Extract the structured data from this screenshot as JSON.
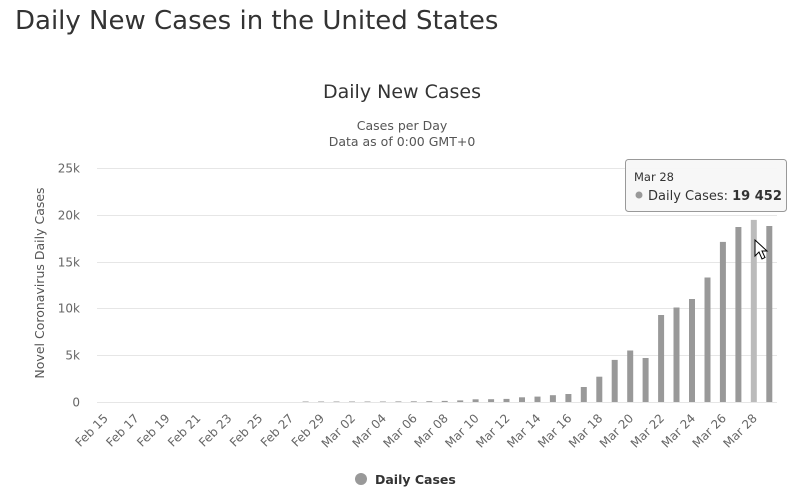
{
  "page": {
    "title": "Daily New Cases in the United States"
  },
  "chart_data": {
    "type": "bar",
    "title": "Daily New Cases",
    "subtitles": [
      "Cases per Day",
      "Data as of 0:00 GMT+0"
    ],
    "xlabel": "",
    "ylabel": "Novel Coronavirus Daily Cases",
    "ylim": [
      0,
      25000
    ],
    "yticks": [
      {
        "value": 0,
        "label": "0"
      },
      {
        "value": 5000,
        "label": "5k"
      },
      {
        "value": 10000,
        "label": "10k"
      },
      {
        "value": 15000,
        "label": "15k"
      },
      {
        "value": 20000,
        "label": "20k"
      },
      {
        "value": 25000,
        "label": "25k"
      }
    ],
    "grid": true,
    "legend": {
      "position": "bottom-center",
      "entries": [
        "Daily Cases"
      ]
    },
    "categories": [
      "Feb 15",
      "Feb 16",
      "Feb 17",
      "Feb 18",
      "Feb 19",
      "Feb 20",
      "Feb 21",
      "Feb 22",
      "Feb 23",
      "Feb 24",
      "Feb 25",
      "Feb 26",
      "Feb 27",
      "Feb 28",
      "Feb 29",
      "Mar 01",
      "Mar 02",
      "Mar 03",
      "Mar 04",
      "Mar 05",
      "Mar 06",
      "Mar 07",
      "Mar 08",
      "Mar 09",
      "Mar 10",
      "Mar 11",
      "Mar 12",
      "Mar 13",
      "Mar 14",
      "Mar 15",
      "Mar 16",
      "Mar 17",
      "Mar 18",
      "Mar 19",
      "Mar 20",
      "Mar 21",
      "Mar 22",
      "Mar 23",
      "Mar 24",
      "Mar 25",
      "Mar 26",
      "Mar 27",
      "Mar 28",
      "Mar 29"
    ],
    "x_tick_labels": [
      "Feb 15",
      "Feb 17",
      "Feb 19",
      "Feb 21",
      "Feb 23",
      "Feb 25",
      "Feb 27",
      "Feb 29",
      "Mar 02",
      "Mar 04",
      "Mar 06",
      "Mar 08",
      "Mar 10",
      "Mar 12",
      "Mar 14",
      "Mar 16",
      "Mar 18",
      "Mar 20",
      "Mar 22",
      "Mar 24",
      "Mar 26",
      "Mar 28"
    ],
    "series": [
      {
        "name": "Daily Cases",
        "color": "#999999",
        "values": [
          0,
          0,
          0,
          0,
          0,
          0,
          0,
          0,
          0,
          0,
          0,
          0,
          0,
          1,
          6,
          7,
          23,
          20,
          31,
          66,
          70,
          86,
          117,
          175,
          290,
          300,
          330,
          500,
          580,
          730,
          860,
          1600,
          2700,
          4500,
          5500,
          4700,
          9300,
          10100,
          11000,
          13300,
          17100,
          18700,
          19452,
          18800
        ]
      }
    ],
    "highlight_color": "#bbbbbb",
    "tooltip": {
      "date": "Mar 28",
      "series": "Daily Cases",
      "value": "19 452",
      "index": 42
    }
  }
}
